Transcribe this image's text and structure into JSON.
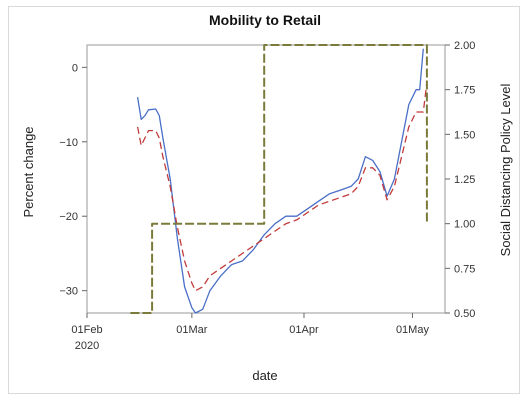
{
  "chart_data": {
    "type": "line",
    "title": "Mobility to Retail",
    "xlabel": "date",
    "ylabel": "Percent change",
    "y2label": "Social Distancing Policy Level",
    "x_ticks": [
      {
        "date": "2020-02-01",
        "label": "01Feb",
        "sublabel": "2020"
      },
      {
        "date": "2020-03-01",
        "label": "01Mar",
        "sublabel": ""
      },
      {
        "date": "2020-04-01",
        "label": "01Apr",
        "sublabel": ""
      },
      {
        "date": "2020-05-01",
        "label": "01May",
        "sublabel": ""
      }
    ],
    "xlim": [
      "2020-02-01",
      "2020-05-10"
    ],
    "ylim": [
      -33,
      3
    ],
    "y_ticks": [
      0,
      -10,
      -20,
      -30
    ],
    "y_tick_labels": [
      "0",
      "−10",
      "−20",
      "−30"
    ],
    "y2lim": [
      0.5,
      2.0
    ],
    "y2_ticks": [
      0.5,
      0.75,
      1.0,
      1.25,
      1.5,
      1.75,
      2.0
    ],
    "y2_tick_labels": [
      "0.50",
      "0.75",
      "1.00",
      "1.25",
      "1.50",
      "1.75",
      "2.00"
    ],
    "grid": false,
    "legend": "none",
    "series": [
      {
        "color": "#4a6fc7",
        "style": "solid",
        "axis": "left",
        "points": [
          [
            "2020-02-15",
            -4
          ],
          [
            "2020-02-16",
            -7
          ],
          [
            "2020-02-17",
            -6.5
          ],
          [
            "2020-02-18",
            -5.7
          ],
          [
            "2020-02-20",
            -5.6
          ],
          [
            "2020-02-21",
            -6.5
          ],
          [
            "2020-02-22",
            -9.5
          ],
          [
            "2020-02-24",
            -15
          ],
          [
            "2020-02-26",
            -23
          ],
          [
            "2020-02-28",
            -29.5
          ],
          [
            "2020-03-01",
            -32.3
          ],
          [
            "2020-03-02",
            -33
          ],
          [
            "2020-03-04",
            -32.5
          ],
          [
            "2020-03-06",
            -30
          ],
          [
            "2020-03-09",
            -28
          ],
          [
            "2020-03-12",
            -26.5
          ],
          [
            "2020-03-15",
            -26
          ],
          [
            "2020-03-18",
            -24.5
          ],
          [
            "2020-03-21",
            -22.5
          ],
          [
            "2020-03-24",
            -21
          ],
          [
            "2020-03-27",
            -20
          ],
          [
            "2020-03-30",
            -20
          ],
          [
            "2020-04-02",
            -19
          ],
          [
            "2020-04-05",
            -18
          ],
          [
            "2020-04-08",
            -17
          ],
          [
            "2020-04-11",
            -16.5
          ],
          [
            "2020-04-14",
            -16
          ],
          [
            "2020-04-16",
            -15
          ],
          [
            "2020-04-18",
            -12
          ],
          [
            "2020-04-20",
            -12.5
          ],
          [
            "2020-04-22",
            -14
          ],
          [
            "2020-04-24",
            -17.3
          ],
          [
            "2020-04-26",
            -15
          ],
          [
            "2020-04-28",
            -10
          ],
          [
            "2020-04-30",
            -5
          ],
          [
            "2020-05-02",
            -3
          ],
          [
            "2020-05-03",
            -3
          ],
          [
            "2020-05-04",
            2.5
          ]
        ]
      },
      {
        "color": "#c23b3b",
        "style": "dashed",
        "axis": "left",
        "points": [
          [
            "2020-02-15",
            -8
          ],
          [
            "2020-02-16",
            -10.5
          ],
          [
            "2020-02-17",
            -9.5
          ],
          [
            "2020-02-18",
            -8.5
          ],
          [
            "2020-02-20",
            -8.5
          ],
          [
            "2020-02-21",
            -9.5
          ],
          [
            "2020-02-22",
            -12
          ],
          [
            "2020-02-24",
            -16
          ],
          [
            "2020-02-26",
            -21.5
          ],
          [
            "2020-02-28",
            -26
          ],
          [
            "2020-03-01",
            -29
          ],
          [
            "2020-03-02",
            -30
          ],
          [
            "2020-03-04",
            -29.5
          ],
          [
            "2020-03-06",
            -28
          ],
          [
            "2020-03-09",
            -27
          ],
          [
            "2020-03-12",
            -26
          ],
          [
            "2020-03-15",
            -25
          ],
          [
            "2020-03-18",
            -24
          ],
          [
            "2020-03-21",
            -23
          ],
          [
            "2020-03-24",
            -22
          ],
          [
            "2020-03-27",
            -21
          ],
          [
            "2020-03-30",
            -20.5
          ],
          [
            "2020-04-02",
            -19.5
          ],
          [
            "2020-04-05",
            -18.5
          ],
          [
            "2020-04-08",
            -18
          ],
          [
            "2020-04-11",
            -17.5
          ],
          [
            "2020-04-14",
            -17
          ],
          [
            "2020-04-16",
            -16
          ],
          [
            "2020-04-18",
            -13.5
          ],
          [
            "2020-04-20",
            -13.5
          ],
          [
            "2020-04-22",
            -14.5
          ],
          [
            "2020-04-24",
            -17.8
          ],
          [
            "2020-04-26",
            -16
          ],
          [
            "2020-04-28",
            -12
          ],
          [
            "2020-04-30",
            -8
          ],
          [
            "2020-05-02",
            -6
          ],
          [
            "2020-05-04",
            -6
          ],
          [
            "2020-05-05",
            -2
          ]
        ]
      },
      {
        "color": "#7a7a3a",
        "style": "dashed",
        "axis": "right",
        "points": [
          [
            "2020-02-13",
            0.5
          ],
          [
            "2020-02-19",
            0.5
          ],
          [
            "2020-02-19",
            1.0
          ],
          [
            "2020-03-21",
            1.0
          ],
          [
            "2020-03-21",
            2.0
          ],
          [
            "2020-05-04",
            2.0
          ],
          [
            "2020-05-05",
            2.0
          ],
          [
            "2020-05-05",
            1.0
          ]
        ]
      }
    ]
  }
}
